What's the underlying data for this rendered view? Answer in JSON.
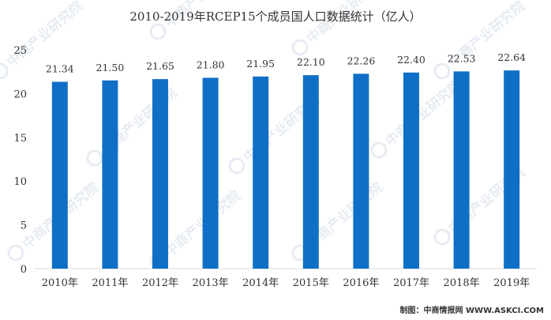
{
  "chart_data": {
    "type": "bar",
    "title": "2010-2019年RCEP15个成员国人口数据统计（亿人）",
    "categories": [
      "2010年",
      "2011年",
      "2012年",
      "2013年",
      "2014年",
      "2015年",
      "2016年",
      "2017年",
      "2018年",
      "2019年"
    ],
    "values": [
      21.34,
      21.5,
      21.65,
      21.8,
      21.95,
      22.1,
      22.26,
      22.4,
      22.53,
      22.64
    ],
    "data_labels": [
      "21.34",
      "21.50",
      "21.65",
      "21.80",
      "21.95",
      "22.10",
      "22.26",
      "22.40",
      "22.53",
      "22.64"
    ],
    "ylim": [
      0,
      25
    ],
    "yticks": [
      "0",
      "5",
      "10",
      "15",
      "20",
      "25"
    ],
    "grid": false,
    "bar_color": "#0f6fc6"
  },
  "credit": "制图：中商情报网 WWW.ASKCI.COM",
  "watermark": "中商产业研究院"
}
